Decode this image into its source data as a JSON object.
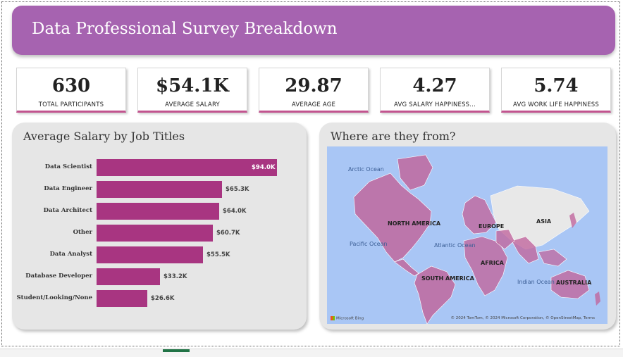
{
  "header": {
    "title": "Data Professional Survey Breakdown"
  },
  "kpis": [
    {
      "value": "630",
      "label": "TOTAL PARTICIPANTS"
    },
    {
      "value": "$54.1K",
      "label": "AVERAGE SALARY"
    },
    {
      "value": "29.87",
      "label": "AVERAGE AGE"
    },
    {
      "value": "4.27",
      "label": "AVG SALARY HAPPINESS..."
    },
    {
      "value": "5.74",
      "label": "AVG WORK LIFE HAPPINESS"
    }
  ],
  "bar_panel": {
    "title": "Average Salary by Job Titles"
  },
  "chart_data": {
    "type": "bar",
    "orientation": "horizontal",
    "title": "Average Salary by Job Titles",
    "categories": [
      "Data Scientist",
      "Data Engineer",
      "Data Architect",
      "Other",
      "Data Analyst",
      "Database Developer",
      "Student/Looking/None"
    ],
    "values": [
      94.0,
      65.3,
      64.0,
      60.7,
      55.5,
      33.2,
      26.6
    ],
    "value_labels": [
      "$94.0K",
      "$65.3K",
      "$64.0K",
      "$60.7K",
      "$55.5K",
      "$33.2K",
      "$26.6K"
    ],
    "bar_color": "#a83581"
  },
  "map_panel": {
    "title": "Where are they from?",
    "continent_labels": [
      "NORTH AMERICA",
      "SOUTH AMERICA",
      "EUROPE",
      "AFRICA",
      "ASIA",
      "AUSTRALIA"
    ],
    "ocean_labels": [
      "Arctic Ocean",
      "Pacific Ocean",
      "Atlantic Ocean",
      "Indian Ocean"
    ],
    "attribution": "© 2024 TomTom, © 2024 Microsoft Corporation, © OpenStreetMap, Terms",
    "provider": "Microsoft Bing",
    "highlight_color": "#c0679e",
    "ocean_color": "#a9c6f5"
  }
}
